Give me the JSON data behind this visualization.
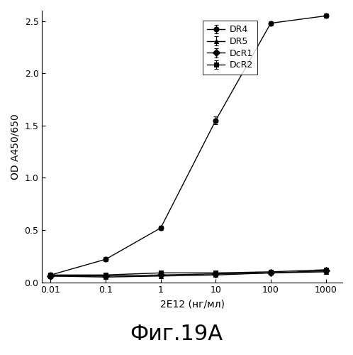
{
  "x": [
    0.01,
    0.1,
    1,
    10,
    100,
    1000
  ],
  "DR4": [
    0.07,
    0.22,
    0.52,
    1.55,
    2.48,
    2.55
  ],
  "DR5": [
    0.06,
    0.05,
    0.06,
    0.07,
    0.09,
    0.1
  ],
  "DcR1": [
    0.06,
    0.06,
    0.07,
    0.08,
    0.09,
    0.11
  ],
  "DcR2": [
    0.07,
    0.07,
    0.09,
    0.09,
    0.1,
    0.12
  ],
  "DR4_err": [
    0.01,
    0.02,
    0.02,
    0.04,
    0.02,
    0.02
  ],
  "DR5_err": [
    0.005,
    0.005,
    0.005,
    0.01,
    0.01,
    0.01
  ],
  "DcR1_err": [
    0.005,
    0.005,
    0.005,
    0.01,
    0.01,
    0.01
  ],
  "DcR2_err": [
    0.005,
    0.005,
    0.01,
    0.01,
    0.01,
    0.01
  ],
  "xlabel": "2E12 (нг/мл)",
  "ylabel": "OD A450/650",
  "ylim": [
    0,
    2.6
  ],
  "yticks": [
    0.0,
    0.5,
    1.0,
    1.5,
    2.0,
    2.5
  ],
  "legend_labels": [
    "DR4",
    "DR5",
    "DcR1",
    "DcR2"
  ],
  "caption": "Фиг.19A",
  "line_color": "#000000",
  "marker_DR4": "o",
  "marker_DR5": "^",
  "marker_DcR1": "D",
  "marker_DcR2": "s",
  "markersize": 5,
  "linewidth": 1.0,
  "fontsize_label": 10,
  "fontsize_tick": 9,
  "fontsize_legend": 9,
  "fontsize_caption": 22
}
